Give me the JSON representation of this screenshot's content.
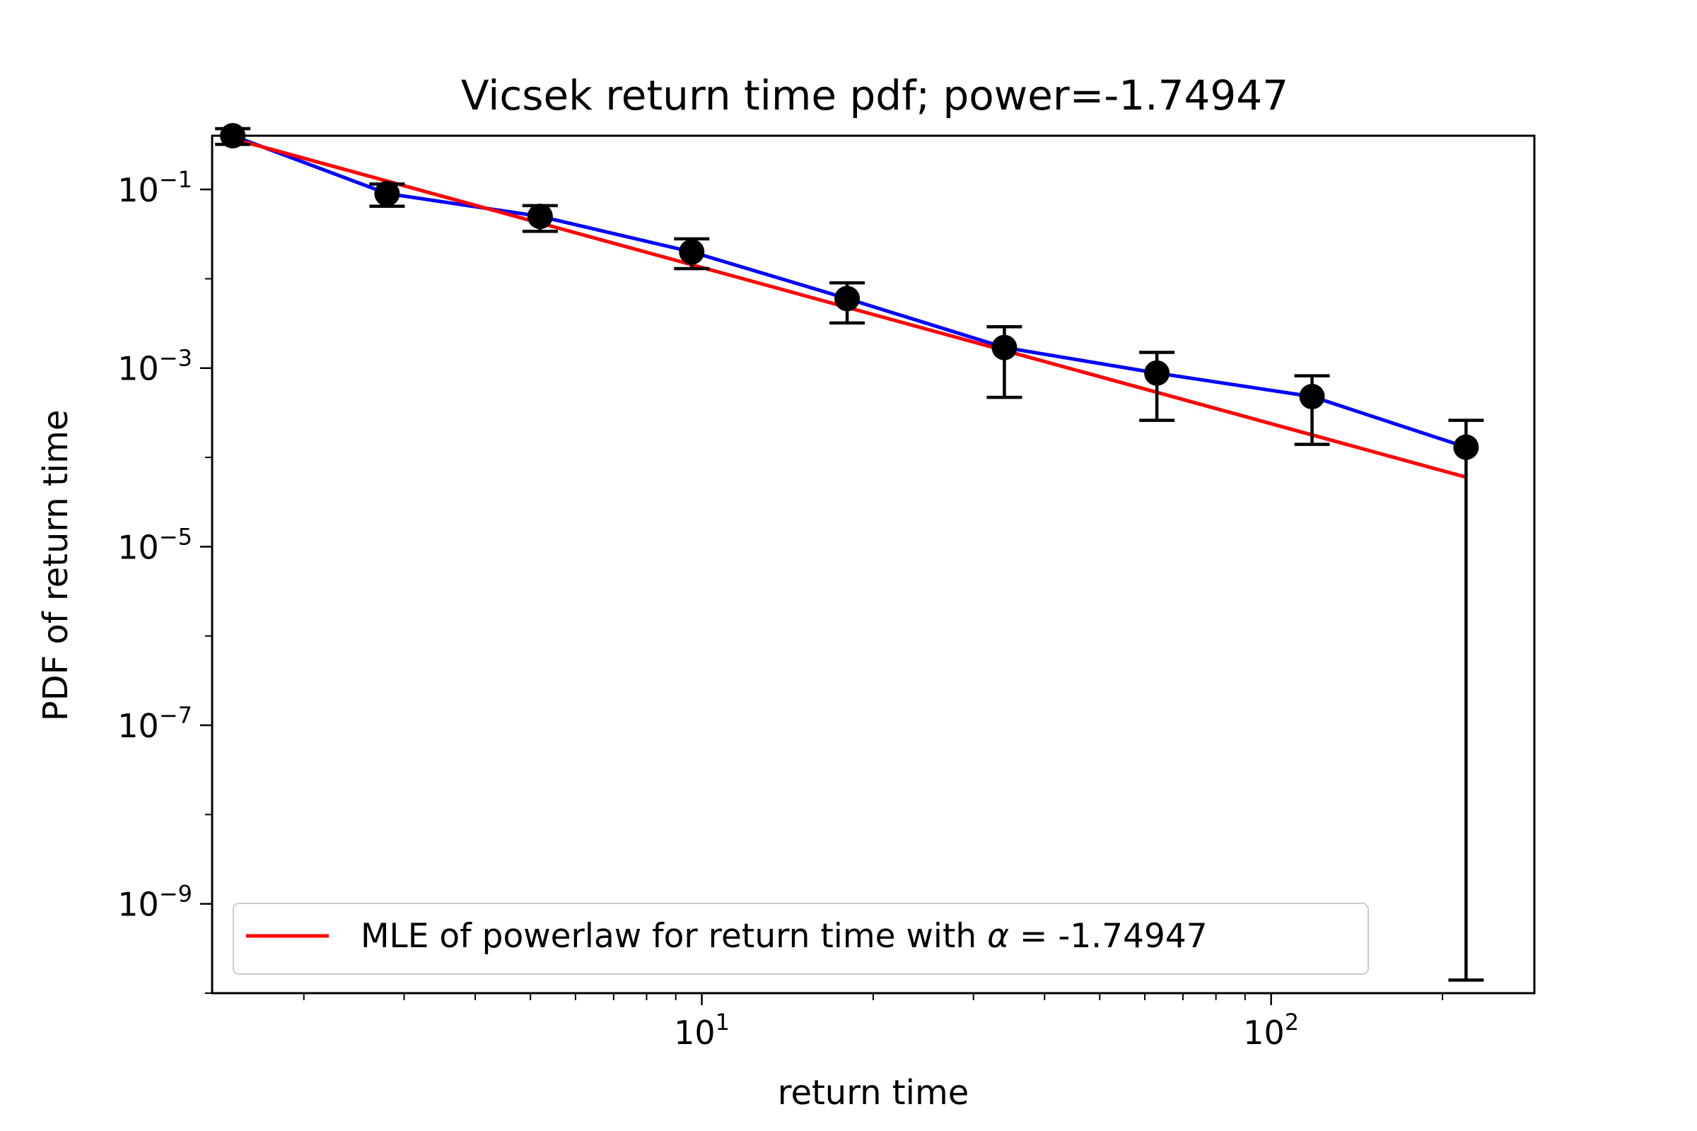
{
  "chart_data": {
    "type": "line",
    "title": "Vicsek return time pdf; power=-1.74947",
    "xlabel": "return time",
    "ylabel": "PDF of return time",
    "xscale": "log",
    "yscale": "log",
    "xlim": [
      1.38,
      290
    ],
    "ylim": [
      1e-10,
      0.4
    ],
    "xticks": [
      {
        "value": 10,
        "base": "10",
        "exp": "1"
      },
      {
        "value": 100,
        "base": "10",
        "exp": "2"
      }
    ],
    "yticks": [
      {
        "value": 0.1,
        "base": "10",
        "exp": "−1"
      },
      {
        "value": 0.001,
        "base": "10",
        "exp": "−3"
      },
      {
        "value": 1e-05,
        "base": "10",
        "exp": "−5"
      },
      {
        "value": 1e-07,
        "base": "10",
        "exp": "−7"
      },
      {
        "value": 1e-09,
        "base": "10",
        "exp": "−9"
      }
    ],
    "grid": false,
    "legend_position": "lower-left",
    "colors": {
      "empirical": "#0000ff",
      "fit": "#ff0000",
      "points": "#000000"
    },
    "series": [
      {
        "kind": "errorbar",
        "x": [
          1.5,
          2.8,
          5.2,
          9.6,
          18,
          34,
          63,
          118,
          220
        ],
        "y": [
          0.4,
          0.09,
          0.05,
          0.02,
          0.006,
          0.0017,
          0.00088,
          0.00048,
          0.00013
        ],
        "yerr_low": [
          0.32,
          0.065,
          0.034,
          0.013,
          0.0032,
          0.00047,
          0.00026,
          0.00014,
          1.4e-10
        ],
        "yerr_high": [
          0.48,
          0.115,
          0.066,
          0.028,
          0.009,
          0.0029,
          0.0015,
          0.00082,
          0.00026
        ]
      },
      {
        "name": "MLE of powerlaw for return time with α = -1.74947",
        "kind": "fit",
        "x": [
          1.5,
          220
        ],
        "y": [
          0.37,
          6e-05
        ]
      }
    ],
    "legend": {
      "label_prefix": "MLE of powerlaw for return time with ",
      "symbol": "α",
      "label_suffix": " = -1.74947"
    }
  }
}
